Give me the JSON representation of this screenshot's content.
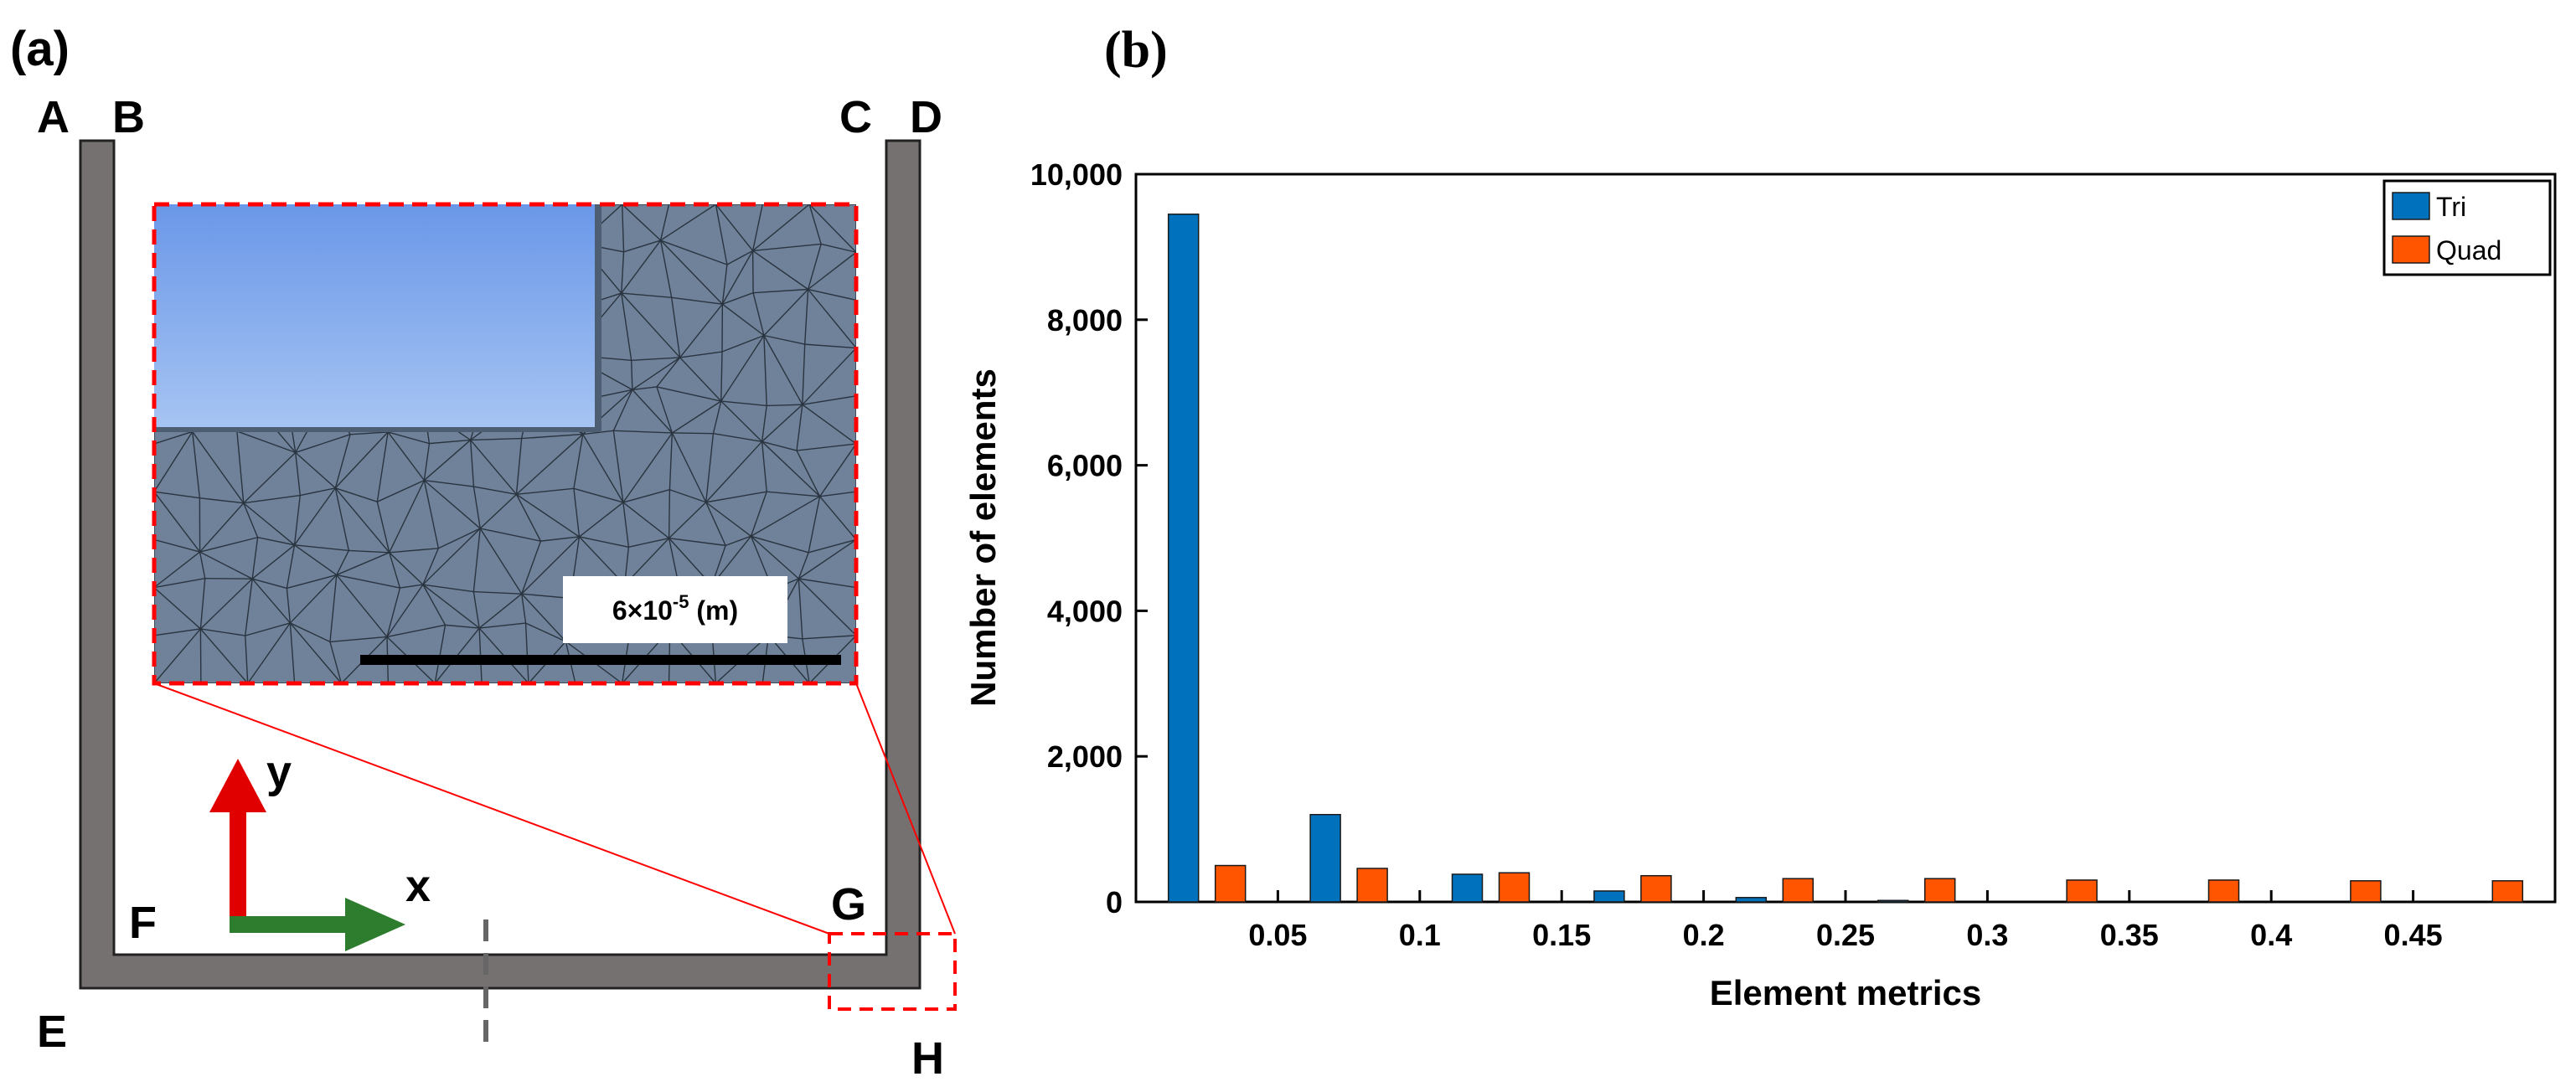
{
  "panel_a": {
    "label": "(a)",
    "corners": {
      "A": "A",
      "B": "B",
      "C": "C",
      "D": "D",
      "E": "E",
      "F": "F",
      "G": "G",
      "H": "H"
    },
    "axes": {
      "x": "x",
      "y": "y"
    },
    "scale_bar": {
      "base": "6×10",
      "exp": "-5",
      "unit": " (m)"
    },
    "colors": {
      "wall": "#767171",
      "mesh_bg": "#6f8299",
      "mesh_line": "#2a3440",
      "fluid_top": "#6a97e8",
      "fluid_bottom": "#a6c4f3",
      "zoom_box": "#ff0000",
      "arrow_x": "#2e7d2e",
      "arrow_y": "#e00000"
    }
  },
  "panel_b": {
    "label": "(b)"
  },
  "chart_data": {
    "type": "bar",
    "xlabel": "Element metrics",
    "ylabel": "Number of elements",
    "xlim": [
      0,
      0.5
    ],
    "ylim": [
      0,
      10000
    ],
    "xticks": [
      0.05,
      0.1,
      0.15,
      0.2,
      0.25,
      0.3,
      0.35,
      0.4,
      0.45
    ],
    "xtick_labels": [
      "0.05",
      "0.1",
      "0.15",
      "0.2",
      "0.25",
      "0.3",
      "0.35",
      "0.4",
      "0.45"
    ],
    "yticks": [
      0,
      2000,
      4000,
      6000,
      8000,
      10000
    ],
    "ytick_labels": [
      "0",
      "2,000",
      "4,000",
      "6,000",
      "8,000",
      "10,000"
    ],
    "bin_centers": [
      0.025,
      0.075,
      0.125,
      0.175,
      0.225,
      0.275,
      0.325,
      0.375,
      0.425,
      0.475
    ],
    "series": [
      {
        "name": "Tri",
        "color": "#0072bd",
        "values": [
          9450,
          1200,
          380,
          150,
          60,
          20,
          0,
          0,
          0,
          0
        ]
      },
      {
        "name": "Quad",
        "color": "#ff5500",
        "values": [
          500,
          460,
          400,
          360,
          320,
          320,
          300,
          300,
          290,
          290
        ]
      }
    ],
    "legend": [
      "Tri",
      "Quad"
    ],
    "legend_position": "top-right",
    "grid": false
  }
}
